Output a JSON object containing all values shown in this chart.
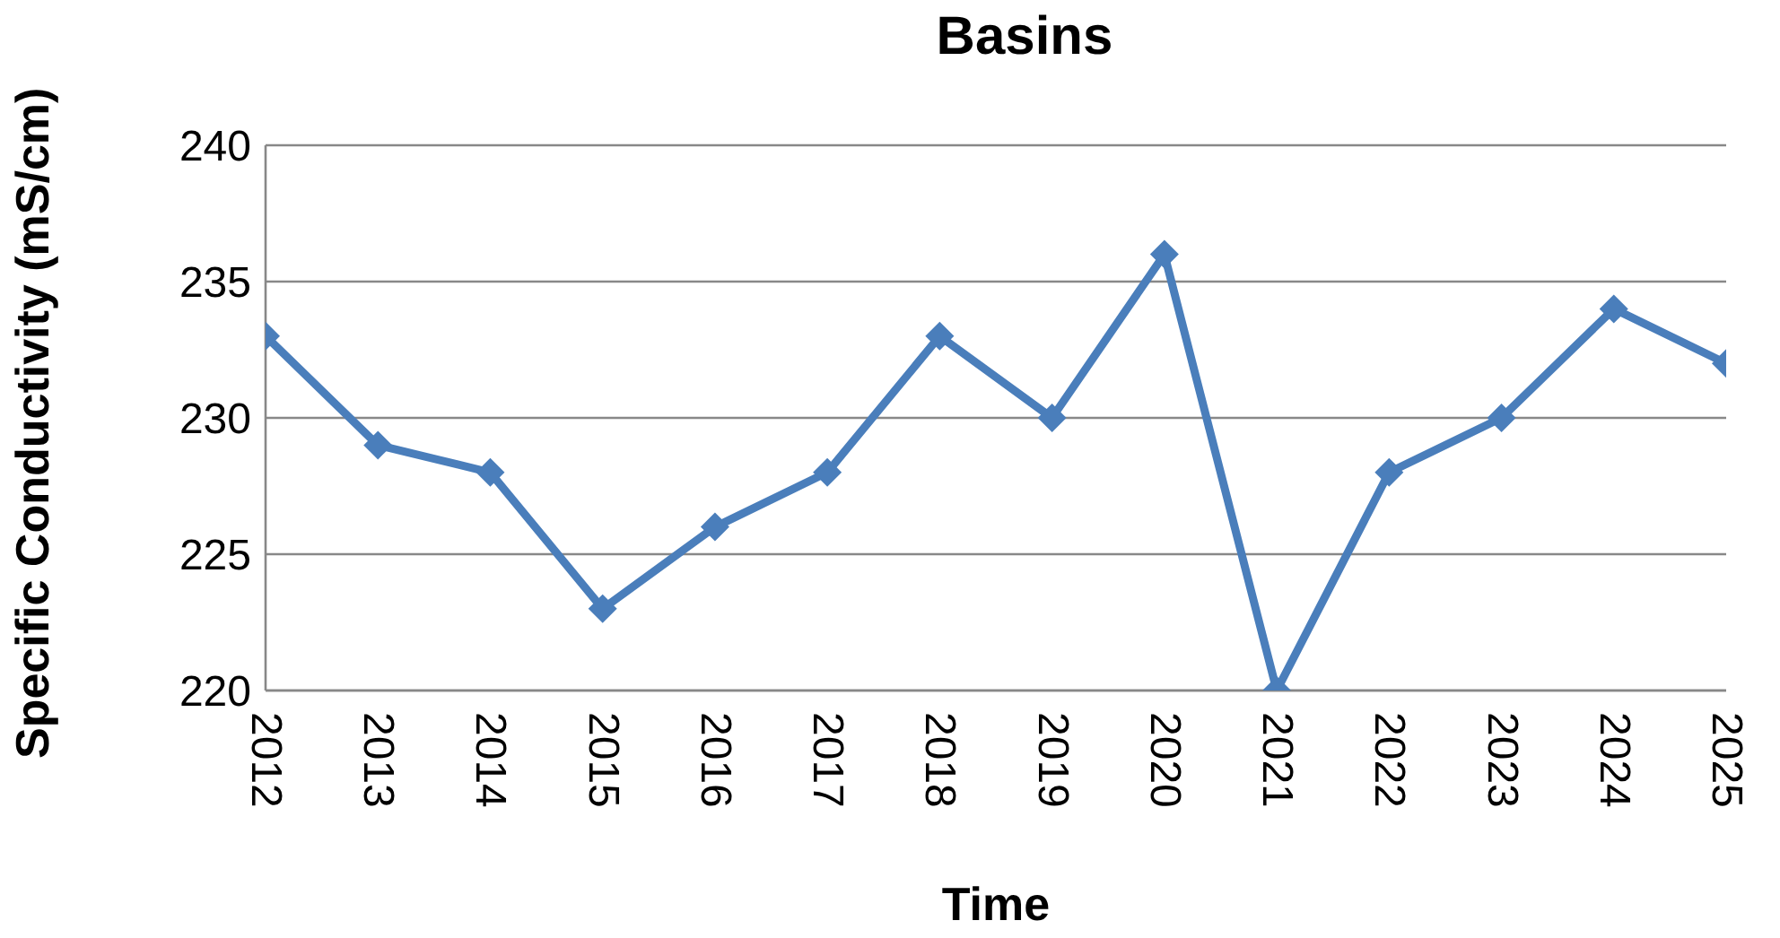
{
  "chart_data": {
    "type": "line",
    "title": "Basins",
    "xlabel": "Time",
    "ylabel": "Specific Conductivity (mS/cm)",
    "categories": [
      "2012",
      "2013",
      "2014",
      "2015",
      "2016",
      "2017",
      "2018",
      "2019",
      "2020",
      "2021",
      "2022",
      "2023",
      "2024",
      "2025"
    ],
    "series": [
      {
        "color": "#4a7ebb",
        "values": [
          233,
          229,
          228,
          223,
          226,
          228,
          233,
          230,
          236,
          220,
          228,
          230,
          234,
          232
        ]
      }
    ],
    "ylim": [
      220,
      240
    ],
    "yticks": [
      220,
      225,
      230,
      235,
      240
    ],
    "grid": "y",
    "legend": false,
    "marker": "diamond",
    "line_style": "solid"
  }
}
